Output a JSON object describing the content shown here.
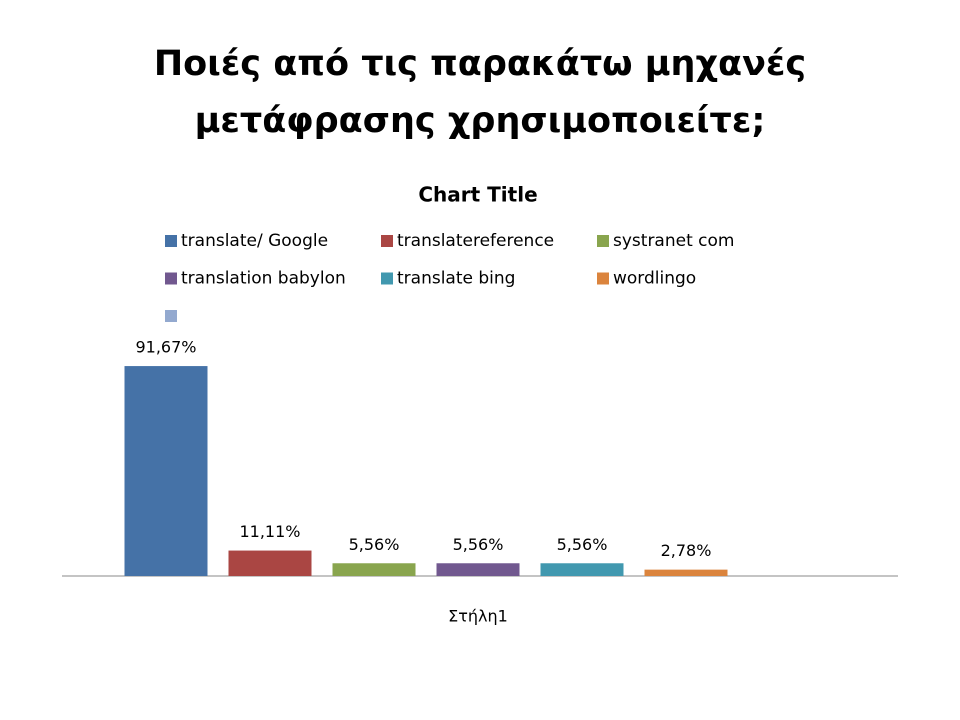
{
  "slide_title": [
    "Ποιές από τις παρακάτω μηχανές",
    "μετάφρασης χρησιμοποιείτε;"
  ],
  "chart_data": {
    "type": "bar",
    "title": "Chart Title",
    "categories": [
      "Στήλη1"
    ],
    "series": [
      {
        "name": "translate/ Google",
        "color": "#4572a7",
        "values": [
          91.67
        ],
        "value_labels": [
          "91,67%"
        ]
      },
      {
        "name": "translatereference",
        "color": "#aa4643",
        "values": [
          11.11
        ],
        "value_labels": [
          "11,11%"
        ]
      },
      {
        "name": "systranet com",
        "color": "#89a54e",
        "values": [
          5.56
        ],
        "value_labels": [
          "5,56%"
        ]
      },
      {
        "name": "translation babylon",
        "color": "#71588f",
        "values": [
          5.56
        ],
        "value_labels": [
          "5,56%"
        ]
      },
      {
        "name": "translate bing",
        "color": "#4198af",
        "values": [
          5.56
        ],
        "value_labels": [
          "5,56%"
        ]
      },
      {
        "name": "wordlingo",
        "color": "#db843d",
        "values": [
          2.78
        ],
        "value_labels": [
          "2,78%"
        ]
      },
      {
        "name": null,
        "color": "#93a9cf",
        "values": [
          null
        ],
        "value_labels": [
          null
        ]
      }
    ],
    "ylim": [
      0,
      100
    ],
    "legend": "top"
  }
}
